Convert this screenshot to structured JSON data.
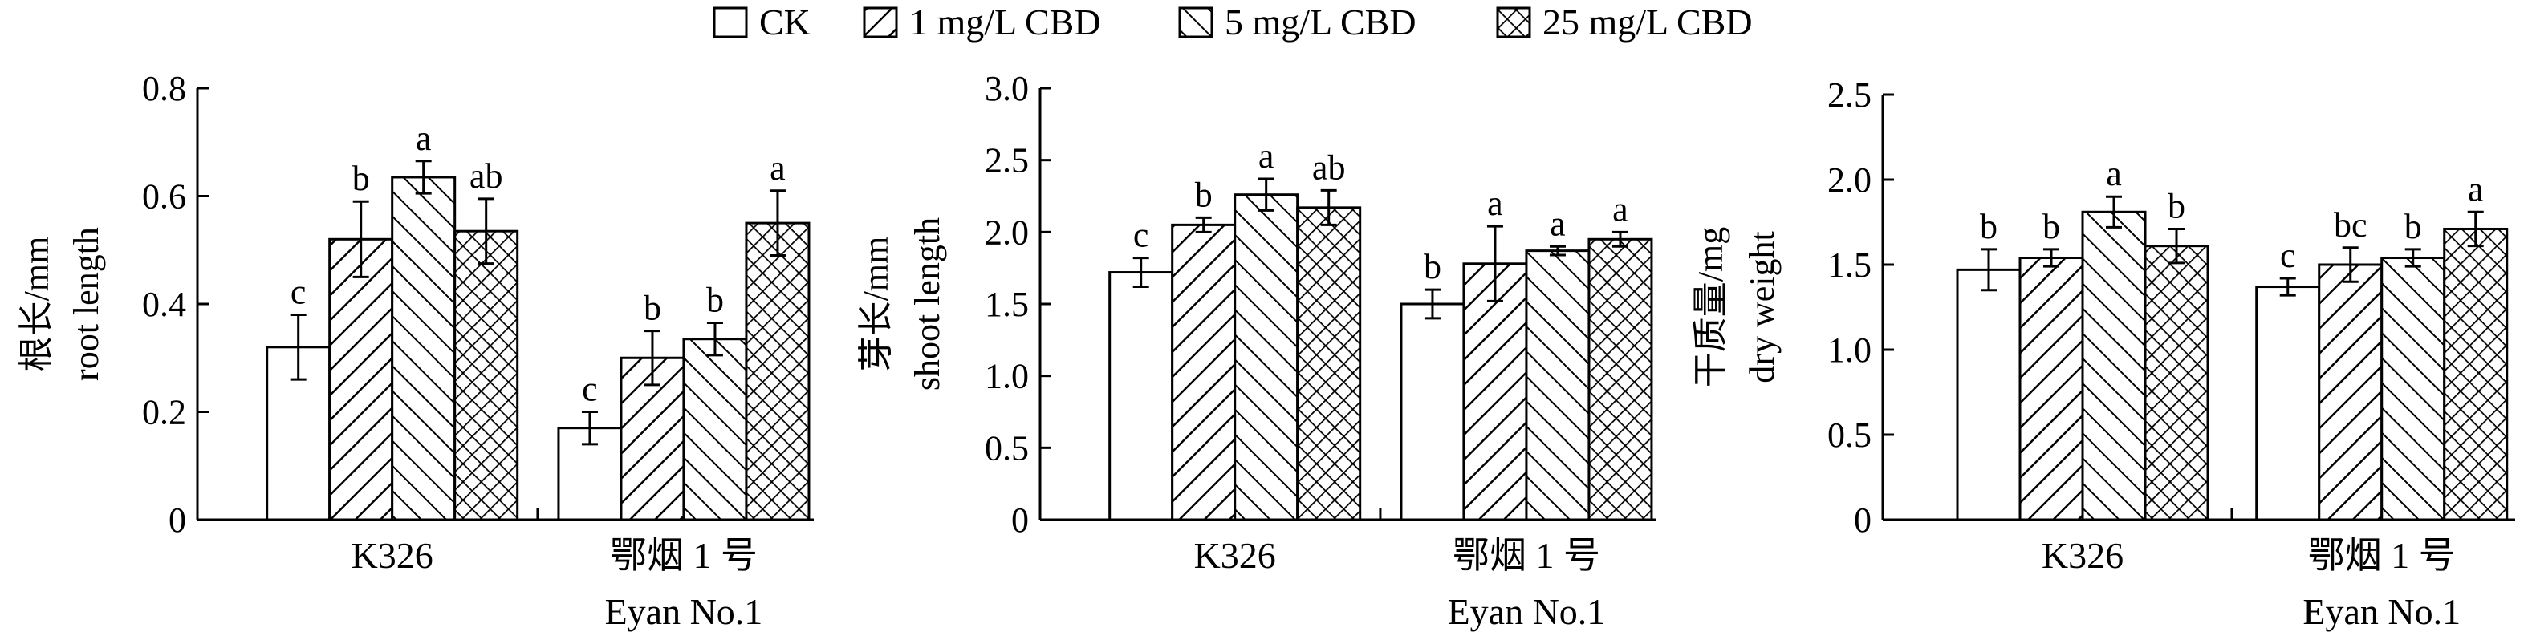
{
  "legend": [
    "CK",
    "1 mg/L CBD",
    "5 mg/L CBD",
    "25 mg/L CBD"
  ],
  "patterns": [
    "none",
    "diag-forward",
    "diag-backward",
    "crosshatch"
  ],
  "chart_data": [
    {
      "type": "bar",
      "ylabel_cn": "根长/mm",
      "ylabel_en": "root length",
      "ylim": [
        0,
        0.8
      ],
      "yticks": [
        0,
        0.2,
        0.4,
        0.6,
        0.8
      ],
      "ytick_labels": [
        "0",
        "0.2",
        "0.4",
        "0.6",
        "0.8"
      ],
      "categories": [
        {
          "name": "K326",
          "name_en": ""
        },
        {
          "name": "鄂烟 1 号",
          "name_en": "Eyan No.1"
        }
      ],
      "series": [
        {
          "name": "CK",
          "values": [
            0.32,
            0.17
          ],
          "errors": [
            0.06,
            0.03
          ],
          "letters": [
            "c",
            "c"
          ]
        },
        {
          "name": "1 mg/L CBD",
          "values": [
            0.52,
            0.3
          ],
          "errors": [
            0.07,
            0.05
          ],
          "letters": [
            "b",
            "b"
          ]
        },
        {
          "name": "5 mg/L CBD",
          "values": [
            0.635,
            0.335
          ],
          "errors": [
            0.03,
            0.03
          ],
          "letters": [
            "a",
            "b"
          ]
        },
        {
          "name": "25 mg/L CBD",
          "values": [
            0.535,
            0.55
          ],
          "errors": [
            0.06,
            0.06
          ],
          "letters": [
            "ab",
            "a"
          ]
        }
      ]
    },
    {
      "type": "bar",
      "ylabel_cn": "芽长/mm",
      "ylabel_en": "shoot length",
      "ylim": [
        0,
        3.0
      ],
      "yticks": [
        0,
        0.5,
        1.0,
        1.5,
        2.0,
        2.5,
        3.0
      ],
      "ytick_labels": [
        "0",
        "0.5",
        "1.0",
        "1.5",
        "2.0",
        "2.5",
        "3.0"
      ],
      "categories": [
        {
          "name": "K326",
          "name_en": ""
        },
        {
          "name": "鄂烟 1 号",
          "name_en": "Eyan No.1"
        }
      ],
      "series": [
        {
          "name": "CK",
          "values": [
            1.72,
            1.5
          ],
          "errors": [
            0.1,
            0.1
          ],
          "letters": [
            "c",
            "b"
          ]
        },
        {
          "name": "1 mg/L CBD",
          "values": [
            2.05,
            1.78
          ],
          "errors": [
            0.05,
            0.26
          ],
          "letters": [
            "b",
            "a"
          ]
        },
        {
          "name": "5 mg/L CBD",
          "values": [
            2.26,
            1.87
          ],
          "errors": [
            0.11,
            0.03
          ],
          "letters": [
            "a",
            "a"
          ]
        },
        {
          "name": "25 mg/L CBD",
          "values": [
            2.17,
            1.95
          ],
          "errors": [
            0.12,
            0.05
          ],
          "letters": [
            "ab",
            "a"
          ]
        }
      ]
    },
    {
      "type": "bar",
      "ylabel_cn": "干质量/mg",
      "ylabel_en": "dry weight",
      "ylim": [
        0,
        2.5
      ],
      "yticks": [
        0,
        0.5,
        1.0,
        1.5,
        2.0,
        2.5
      ],
      "ytick_labels": [
        "0",
        "0.5",
        "1.0",
        "1.5",
        "2.0",
        "2.5"
      ],
      "categories": [
        {
          "name": "K326",
          "name_en": ""
        },
        {
          "name": "鄂烟 1 号",
          "name_en": "Eyan No.1"
        }
      ],
      "series": [
        {
          "name": "CK",
          "values": [
            1.47,
            1.37
          ],
          "errors": [
            0.12,
            0.05
          ],
          "letters": [
            "b",
            "c"
          ]
        },
        {
          "name": "1 mg/L CBD",
          "values": [
            1.54,
            1.5
          ],
          "errors": [
            0.05,
            0.1
          ],
          "letters": [
            "b",
            "bc"
          ]
        },
        {
          "name": "5 mg/L CBD",
          "values": [
            1.81,
            1.54
          ],
          "errors": [
            0.09,
            0.05
          ],
          "letters": [
            "a",
            "b"
          ]
        },
        {
          "name": "25 mg/L CBD",
          "values": [
            1.61,
            1.71
          ],
          "errors": [
            0.1,
            0.1
          ],
          "letters": [
            "b",
            "a"
          ]
        }
      ]
    }
  ]
}
